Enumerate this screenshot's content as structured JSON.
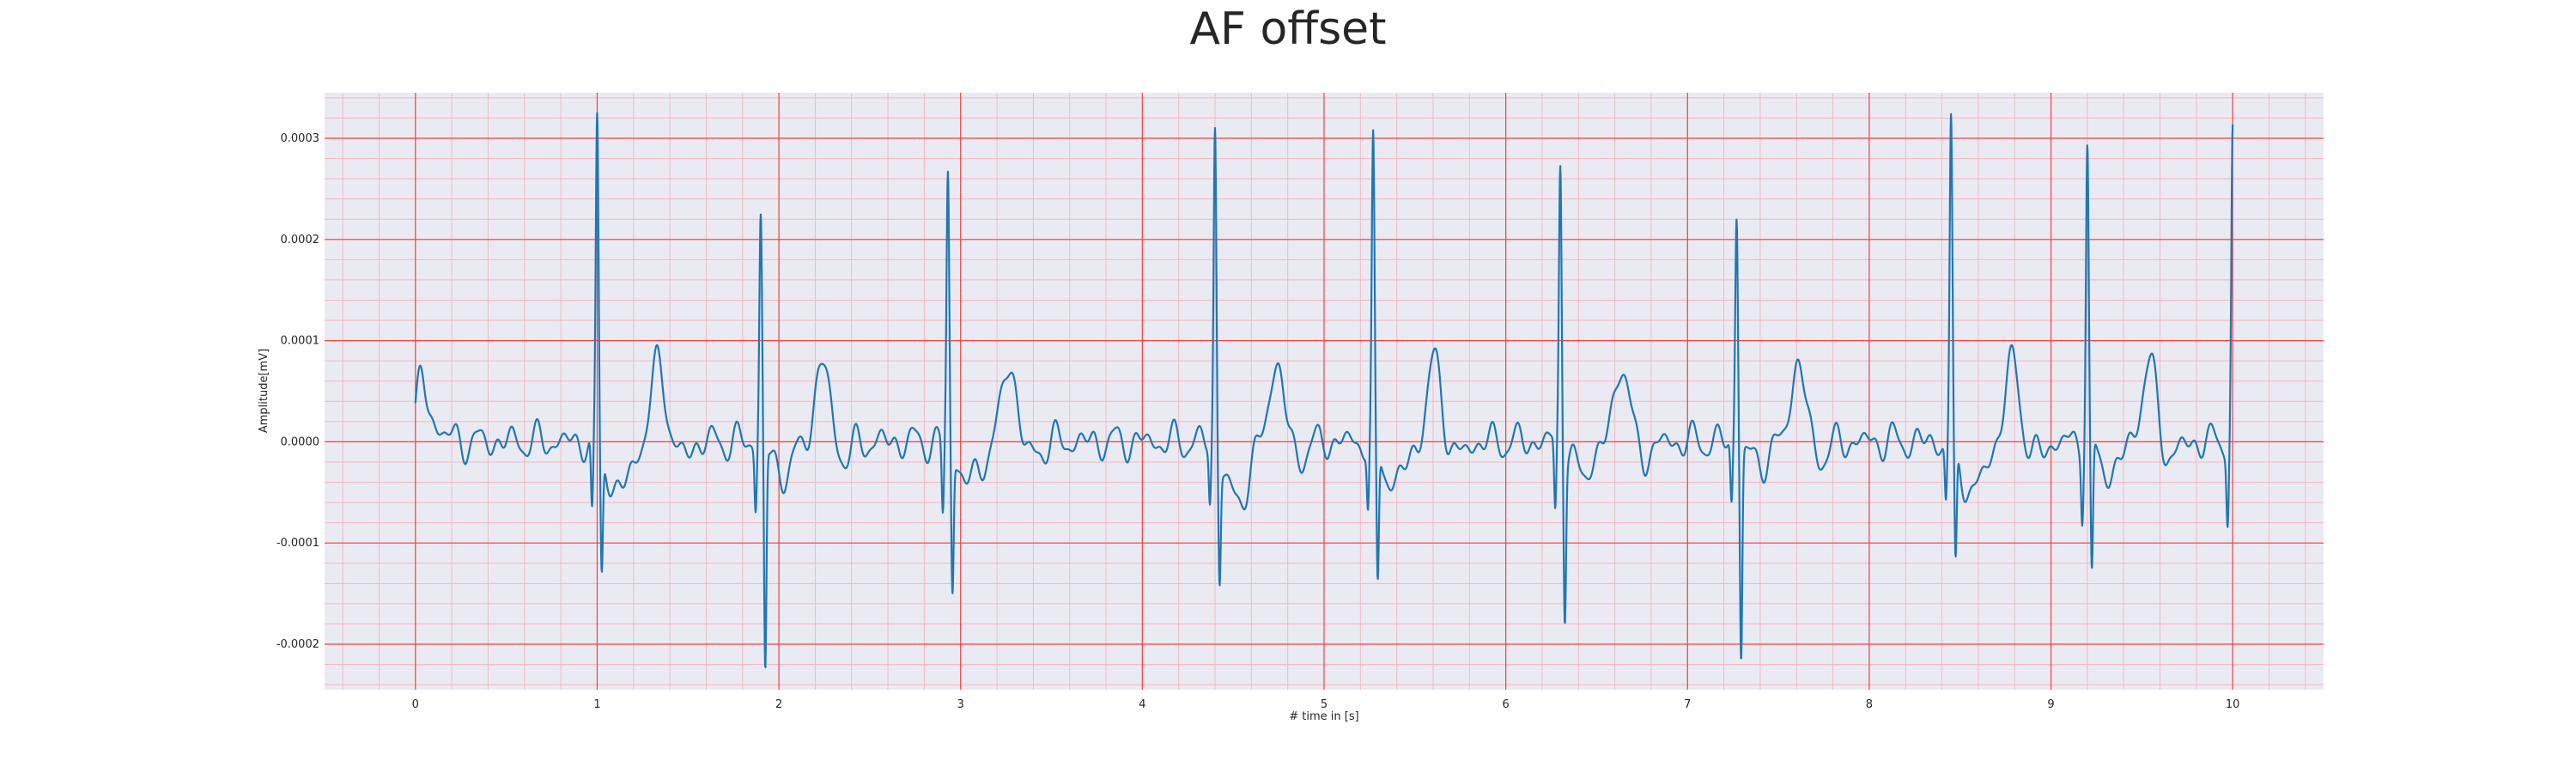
{
  "chart_data": {
    "type": "line",
    "title": "AF offset",
    "xlabel": "# time in [s]",
    "ylabel": "Amplitude[mV]",
    "xlim": [
      -0.5,
      10.5
    ],
    "ylim": [
      -0.000245,
      0.000345
    ],
    "xticks": [
      0,
      1,
      2,
      3,
      4,
      5,
      6,
      7,
      8,
      9,
      10
    ],
    "xtick_labels": [
      "0",
      "1",
      "2",
      "3",
      "4",
      "5",
      "6",
      "7",
      "8",
      "9",
      "10"
    ],
    "yticks": [
      -0.0002,
      -0.0001,
      0.0,
      0.0001,
      0.0002,
      0.0003
    ],
    "ytick_labels": [
      "-0.0002",
      "-0.0001",
      "0.0000",
      "0.0001",
      "0.0002",
      "0.0003"
    ],
    "grid": true,
    "series": [
      {
        "color": "#1f77b4",
        "beats": [
          {
            "t": 1.0,
            "q": -7.5e-05,
            "r": 0.00032,
            "s": -0.00012,
            "stl": -5e-05
          },
          {
            "t": 1.9,
            "q": -6e-05,
            "r": 0.000228,
            "s": -0.00022,
            "stl": -3e-05
          },
          {
            "t": 2.93,
            "q": -7e-05,
            "r": 0.00027,
            "s": -0.000135,
            "stl": -4e-05
          },
          {
            "t": 4.4,
            "q": -5.5e-05,
            "r": 0.000318,
            "s": -0.000115,
            "stl": -6e-05
          },
          {
            "t": 5.27,
            "q": -6e-05,
            "r": 0.000292,
            "s": -0.000135,
            "stl": -4e-05
          },
          {
            "t": 6.3,
            "q": -7e-05,
            "r": 0.000285,
            "s": -0.000152,
            "stl": -3e-05
          },
          {
            "t": 7.27,
            "q": -6e-05,
            "r": 0.000232,
            "s": -0.000205,
            "stl": -2e-05
          },
          {
            "t": 8.45,
            "q": -5.5e-05,
            "r": 0.00032,
            "s": -0.000118,
            "stl": -5e-05
          },
          {
            "t": 9.2,
            "q": -6e-05,
            "r": 0.0003,
            "s": -0.000133,
            "stl": -3e-05
          },
          {
            "t": 10.0,
            "q": -6.8e-05,
            "r": 0.000305,
            "s": 0.0,
            "stl": 0.0
          }
        ]
      }
    ]
  }
}
